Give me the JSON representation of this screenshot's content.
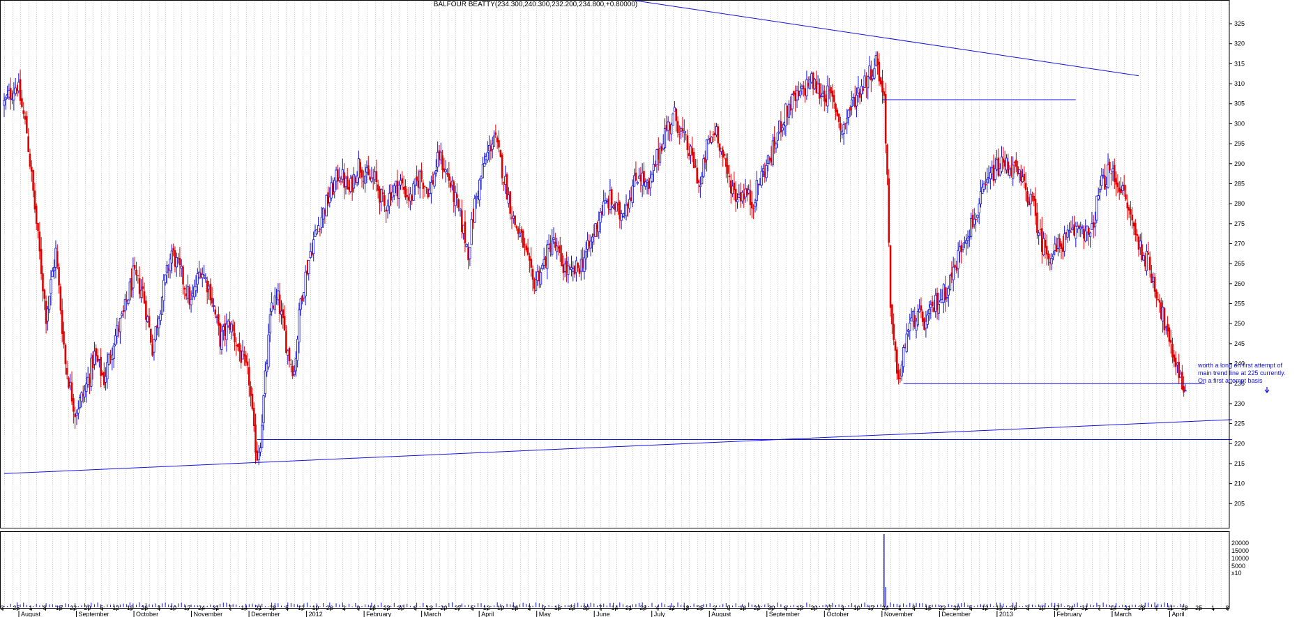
{
  "chart_data": {
    "type": "candlestick",
    "title": "BALFOUR BEATTY(234.300,240.300,232.200,234.800,+0.80000)",
    "ylim": [
      200,
      330
    ],
    "y_ticks": [
      205,
      210,
      215,
      220,
      225,
      230,
      235,
      240,
      245,
      250,
      255,
      260,
      265,
      270,
      275,
      280,
      285,
      290,
      295,
      300,
      305,
      310,
      315,
      320,
      325
    ],
    "volume_ticks": [
      "20000",
      "15000",
      "10000",
      "5000",
      "x10"
    ],
    "grid": true,
    "colors": {
      "up": "#1010e0",
      "down": "#e00000",
      "line": "#1010e0",
      "grid": "#b0b0b0"
    },
    "date_labels": [
      "3",
      "25",
      "1",
      "8",
      "15",
      "22",
      "29",
      "5",
      "12",
      "19",
      "26",
      "3",
      "10",
      "17",
      "24",
      "31",
      "7",
      "14",
      "21",
      "28",
      "5",
      "12",
      "19",
      "26",
      "2",
      "9",
      "16",
      "23",
      "30",
      "6",
      "13",
      "20",
      "27",
      "5",
      "12",
      "19",
      "26",
      "2",
      "9",
      "16",
      "23",
      "30",
      "7",
      "14",
      "21",
      "28",
      "4",
      "11",
      "18",
      "25",
      "2",
      "9",
      "16",
      "23",
      "30",
      "6",
      "13",
      "20",
      "27",
      "3",
      "10",
      "17",
      "24",
      "1",
      "8",
      "15",
      "22",
      "29",
      "5",
      "12",
      "19",
      "26",
      "3",
      "10",
      "17",
      "24",
      "31",
      "7",
      "14",
      "21",
      "28",
      "4",
      "11",
      "18",
      "25",
      "1",
      "8"
    ],
    "months": [
      "August",
      "September",
      "October",
      "November",
      "December",
      "2012",
      "February",
      "March",
      "April",
      "May",
      "June",
      "July",
      "August",
      "September",
      "October",
      "November",
      "December",
      "2013",
      "February",
      "March",
      "April"
    ],
    "annotation": {
      "lines": [
        "worth a long on first attempt of",
        "main trend line at 225 currently.",
        "On a first attempt basis"
      ]
    },
    "price_path": [
      [
        0,
        305
      ],
      [
        8,
        310
      ],
      [
        14,
        298
      ],
      [
        20,
        275
      ],
      [
        26,
        252
      ],
      [
        32,
        268
      ],
      [
        38,
        240
      ],
      [
        44,
        228
      ],
      [
        50,
        233
      ],
      [
        56,
        242
      ],
      [
        62,
        236
      ],
      [
        68,
        246
      ],
      [
        74,
        252
      ],
      [
        80,
        262
      ],
      [
        86,
        258
      ],
      [
        92,
        244
      ],
      [
        98,
        257
      ],
      [
        104,
        268
      ],
      [
        110,
        262
      ],
      [
        116,
        255
      ],
      [
        122,
        264
      ],
      [
        128,
        258
      ],
      [
        134,
        246
      ],
      [
        140,
        250
      ],
      [
        146,
        243
      ],
      [
        152,
        236
      ],
      [
        155,
        222
      ],
      [
        157,
        217
      ],
      [
        159,
        221
      ],
      [
        162,
        236
      ],
      [
        166,
        255
      ],
      [
        170,
        256
      ],
      [
        176,
        243
      ],
      [
        180,
        238
      ],
      [
        184,
        256
      ],
      [
        190,
        268
      ],
      [
        196,
        276
      ],
      [
        202,
        282
      ],
      [
        208,
        288
      ],
      [
        214,
        283
      ],
      [
        220,
        290
      ],
      [
        226,
        286
      ],
      [
        230,
        286
      ],
      [
        236,
        279
      ],
      [
        240,
        283
      ],
      [
        246,
        285
      ],
      [
        252,
        281
      ],
      [
        258,
        287
      ],
      [
        264,
        283
      ],
      [
        270,
        292
      ],
      [
        276,
        286
      ],
      [
        282,
        278
      ],
      [
        288,
        268
      ],
      [
        292,
        280
      ],
      [
        298,
        290
      ],
      [
        304,
        297
      ],
      [
        310,
        287
      ],
      [
        316,
        276
      ],
      [
        322,
        270
      ],
      [
        328,
        260
      ],
      [
        334,
        264
      ],
      [
        340,
        271
      ],
      [
        346,
        265
      ],
      [
        352,
        262
      ],
      [
        358,
        265
      ],
      [
        364,
        270
      ],
      [
        370,
        278
      ],
      [
        376,
        281
      ],
      [
        382,
        277
      ],
      [
        388,
        282
      ],
      [
        394,
        288
      ],
      [
        400,
        283
      ],
      [
        404,
        290
      ],
      [
        410,
        298
      ],
      [
        416,
        302
      ],
      [
        422,
        296
      ],
      [
        428,
        290
      ],
      [
        432,
        284
      ],
      [
        436,
        294
      ],
      [
        442,
        299
      ],
      [
        448,
        288
      ],
      [
        454,
        282
      ],
      [
        460,
        283
      ],
      [
        464,
        280
      ],
      [
        470,
        287
      ],
      [
        476,
        292
      ],
      [
        482,
        300
      ],
      [
        488,
        305
      ],
      [
        494,
        307
      ],
      [
        500,
        311
      ],
      [
        506,
        308
      ],
      [
        512,
        307
      ],
      [
        516,
        304
      ],
      [
        520,
        298
      ],
      [
        524,
        303
      ],
      [
        530,
        308
      ],
      [
        536,
        312
      ],
      [
        542,
        316
      ],
      [
        544,
        309
      ],
      [
        546,
        307
      ],
      [
        548,
        287
      ],
      [
        550,
        252
      ],
      [
        553,
        241
      ],
      [
        556,
        236
      ],
      [
        560,
        248
      ],
      [
        566,
        252
      ],
      [
        572,
        250
      ],
      [
        578,
        255
      ],
      [
        584,
        258
      ],
      [
        590,
        264
      ],
      [
        596,
        272
      ],
      [
        602,
        276
      ],
      [
        608,
        283
      ],
      [
        614,
        288
      ],
      [
        620,
        290
      ],
      [
        626,
        289
      ],
      [
        632,
        285
      ],
      [
        638,
        280
      ],
      [
        644,
        270
      ],
      [
        650,
        267
      ],
      [
        656,
        270
      ],
      [
        662,
        272
      ],
      [
        668,
        275
      ],
      [
        674,
        271
      ],
      [
        680,
        284
      ],
      [
        686,
        288
      ],
      [
        692,
        285
      ],
      [
        698,
        278
      ],
      [
        704,
        270
      ],
      [
        710,
        265
      ],
      [
        716,
        257
      ],
      [
        720,
        250
      ],
      [
        724,
        243
      ],
      [
        728,
        240
      ],
      [
        731,
        234
      ],
      [
        733,
        235
      ]
    ],
    "trendlines": [
      {
        "name": "main-rising",
        "from": [
          0,
          212.5
        ],
        "to": [
          762,
          226
        ]
      },
      {
        "name": "descending-resistance",
        "from": [
          388,
          331
        ],
        "to": [
          704,
          312
        ]
      },
      {
        "name": "support-221",
        "from": [
          157,
          221
        ],
        "to": [
          762,
          221
        ]
      },
      {
        "name": "level-306",
        "from": [
          545,
          306
        ],
        "to": [
          665,
          306
        ]
      },
      {
        "name": "support-235",
        "from": [
          558,
          235
        ],
        "to": [
          745,
          235
        ]
      }
    ],
    "volume_spike_index": 546
  }
}
